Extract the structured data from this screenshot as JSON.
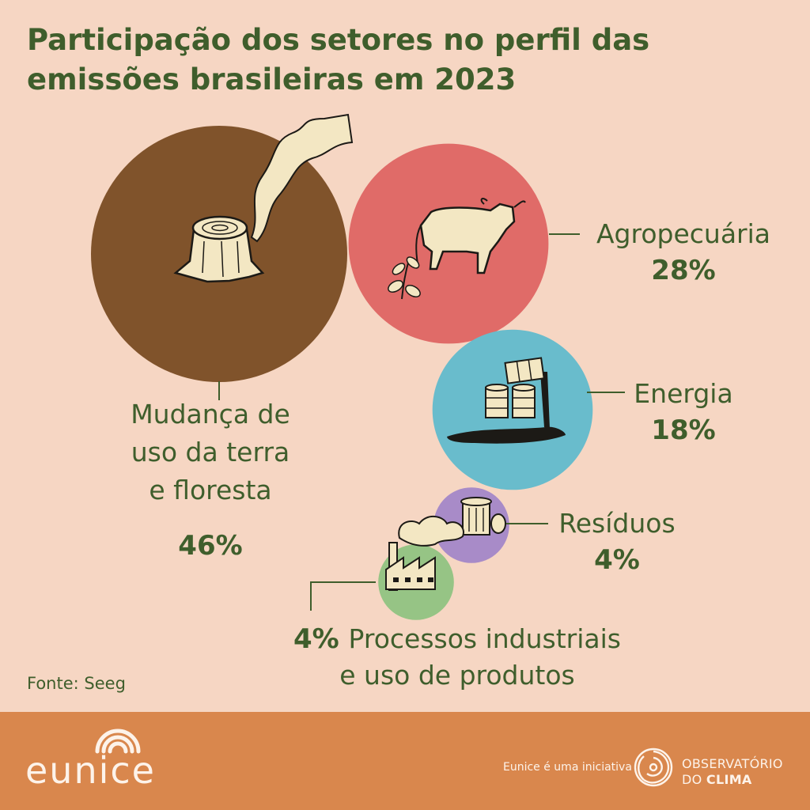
{
  "title": "Participação dos setores no perfil das emissões brasileiras em 2023",
  "source": "Fonte: Seeg",
  "footer": {
    "brand": "eunice",
    "initiative": "Eunice é uma iniciativa",
    "org_line1": "OBSERVATÓRIO",
    "org_line2_a": "DO ",
    "org_line2_b": "CLIMA"
  },
  "colors": {
    "background": "#f6d6c3",
    "footer": "#d9874d",
    "text": "#3f5e2c"
  },
  "chart_data": {
    "type": "bubble",
    "title": "Participação dos setores no perfil das emissões brasileiras em 2023",
    "unit": "%",
    "series": [
      {
        "name": "Mudança de uso da terra e floresta",
        "label_lines": [
          "Mudança de",
          "uso da terra",
          "e floresta"
        ],
        "value": 46,
        "value_label": "46%",
        "color": "#80532b",
        "icon": "tree-stump-icon"
      },
      {
        "name": "Agropecuária",
        "label_lines": [
          "Agropecuária"
        ],
        "value": 28,
        "value_label": "28%",
        "color": "#e06b68",
        "icon": "cow-icon"
      },
      {
        "name": "Energia",
        "label_lines": [
          "Energia"
        ],
        "value": 18,
        "value_label": "18%",
        "color": "#69bccc",
        "icon": "oil-barrels-icon"
      },
      {
        "name": "Resíduos",
        "label_lines": [
          "Resíduos"
        ],
        "value": 4,
        "value_label": "4%",
        "color": "#a88bc8",
        "icon": "trash-can-icon"
      },
      {
        "name": "Processos industriais e uso de produtos",
        "label_lines": [
          "Processos industriais",
          "e uso de produtos"
        ],
        "value": 4,
        "value_label": "4%",
        "color": "#96c485",
        "icon": "factory-icon"
      }
    ]
  }
}
